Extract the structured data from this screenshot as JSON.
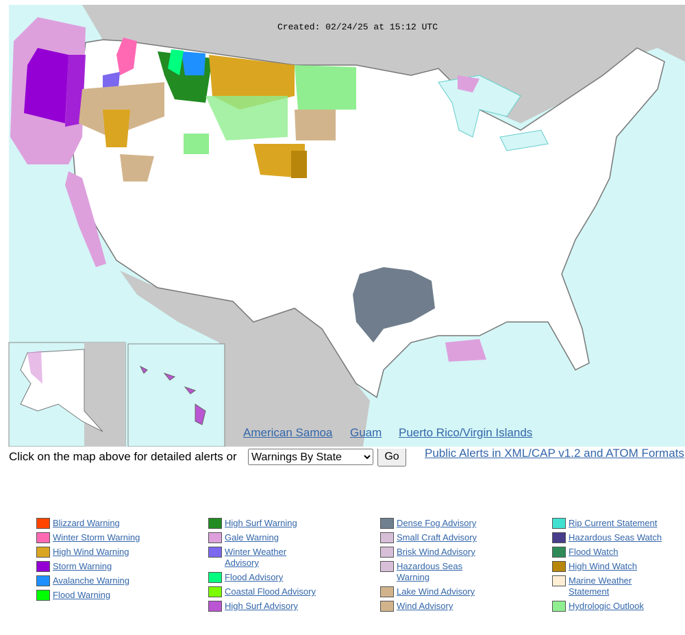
{
  "map": {
    "created": "Created: 02/24/25 at 15:12 UTC",
    "links": [
      "American Samoa",
      "Guam",
      "Puerto Rico/Virgin Islands"
    ]
  },
  "controls": {
    "prompt": "Click on the map above for detailed alerts or",
    "select": "Warnings By State",
    "button": "Go",
    "feeds_link": "Public Alerts in XML/CAP v1.2 and ATOM Formats"
  },
  "legend": [
    [
      {
        "label": "Blizzard Warning",
        "color": "#ff4500"
      },
      {
        "label": "Winter Storm Warning",
        "color": "#ff69b4"
      },
      {
        "label": "High Wind Warning",
        "color": "#daa520"
      },
      {
        "label": "Storm Warning",
        "color": "#9400d3"
      },
      {
        "label": "Avalanche Warning",
        "color": "#1e90ff"
      },
      {
        "label": "Flood Warning",
        "color": "#00ff00"
      }
    ],
    [
      {
        "label": "High Surf Warning",
        "color": "#228b22"
      },
      {
        "label": "Gale Warning",
        "color": "#dda0dd"
      },
      {
        "label": "Winter Weather Advisory",
        "color": "#7b68ee"
      },
      {
        "label": "Flood Advisory",
        "color": "#00ff7f"
      },
      {
        "label": "Coastal Flood Advisory",
        "color": "#7cfc00"
      },
      {
        "label": "High Surf Advisory",
        "color": "#ba55d3"
      }
    ],
    [
      {
        "label": "Dense Fog Advisory",
        "color": "#708090"
      },
      {
        "label": "Small Craft Advisory",
        "color": "#d8bfd8"
      },
      {
        "label": "Brisk Wind Advisory",
        "color": "#d8bfd8"
      },
      {
        "label": "Hazardous Seas Warning",
        "color": "#d8bfd8"
      },
      {
        "label": "Lake Wind Advisory",
        "color": "#d2b48c"
      },
      {
        "label": "Wind Advisory",
        "color": "#d2b48c"
      }
    ],
    [
      {
        "label": "Rip Current Statement",
        "color": "#40e0d0"
      },
      {
        "label": "Hazardous Seas Watch",
        "color": "#483d8b"
      },
      {
        "label": "Flood Watch",
        "color": "#2e8b57"
      },
      {
        "label": "High Wind Watch",
        "color": "#b8860b"
      },
      {
        "label": "Marine Weather Statement",
        "color": "#ffefd5"
      },
      {
        "label": "Hydrologic Outlook",
        "color": "#90ee90"
      }
    ]
  ]
}
